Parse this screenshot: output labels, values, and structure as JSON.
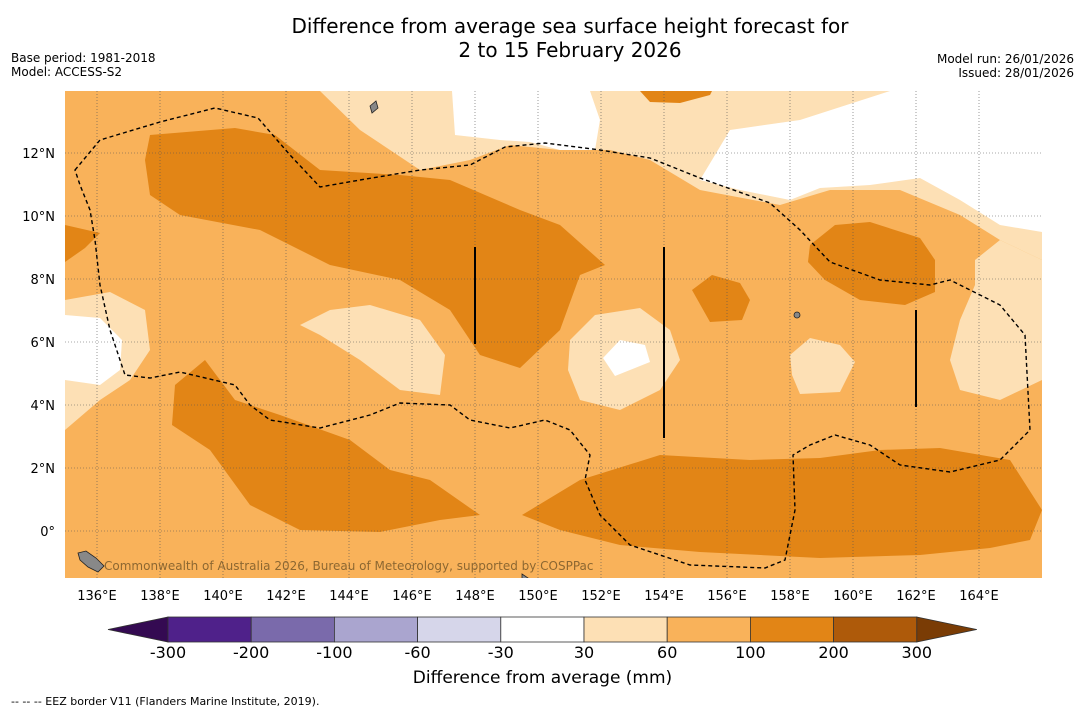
{
  "title_line1": "Difference from average sea surface height forecast for",
  "title_line2": "2 to 15 February 2026",
  "meta": {
    "base_period": "Base period: 1981-2018",
    "model": "Model: ACCESS-S2",
    "model_run": "Model run: 26/01/2026",
    "issued": "Issued: 28/01/2026"
  },
  "map": {
    "lon_ticks": [
      "136°E",
      "138°E",
      "140°E",
      "142°E",
      "144°E",
      "146°E",
      "148°E",
      "150°E",
      "152°E",
      "154°E",
      "156°E",
      "158°E",
      "160°E",
      "162°E",
      "164°E"
    ],
    "lat_ticks": [
      "12°N",
      "10°N",
      "8°N",
      "6°N",
      "4°N",
      "2°N",
      "0°"
    ],
    "credit": "Commonwealth of Australia 2026, Bureau of Meteorology, supported by COSPPac"
  },
  "colorbar": {
    "ticks": [
      "-300",
      "-200",
      "-100",
      "-60",
      "-30",
      "30",
      "60",
      "100",
      "200",
      "300"
    ],
    "colors": [
      "#340a52",
      "#4f218a",
      "#7a6aab",
      "#aaa5cf",
      "#d6d6ea",
      "#ffffff",
      "#fde0b5",
      "#f9b25a",
      "#e28516",
      "#ae5a0a",
      "#7a3c05"
    ],
    "label": "Difference from average (mm)"
  },
  "footnote": "--  --  -- EEZ border V11 (Flanders Marine Institute, 2019)."
}
